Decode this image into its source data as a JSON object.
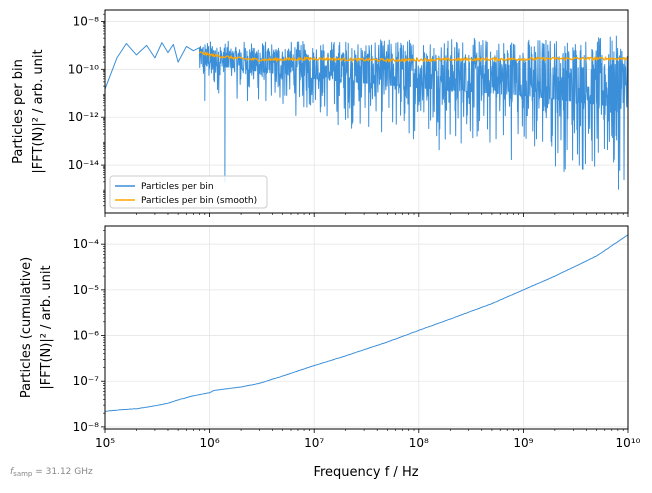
{
  "footnote": "f_samp = 31.12 GHz",
  "footnote_main": "f",
  "footnote_sub": "samp",
  "footnote_rest": " = 31.12 GHz",
  "colors": {
    "blue": "#3b8fd9",
    "orange": "#ffa500"
  },
  "chart_data": [
    {
      "type": "line",
      "panel": "top",
      "ylabel_line1": "Particles per bin",
      "ylabel_line2": "|FFT(N)|² / arb. unit",
      "xscale": "log",
      "yscale": "log",
      "xlim": [
        100000,
        10000000000
      ],
      "ylim": [
        1e-16,
        3e-08
      ],
      "yticks": [
        1e-14,
        1e-12,
        1e-10,
        1e-08
      ],
      "ytick_labels": [
        "10⁻¹⁴",
        "10⁻¹²",
        "10⁻¹⁰",
        "10⁻⁸"
      ],
      "grid": true,
      "legend_position": "lower-left",
      "series": [
        {
          "name": "Particles per bin",
          "color": "#3b8fd9",
          "style": "noisy spectrum",
          "envelope_upper": {
            "x": [
              100000,
              1000000,
              10000000,
              100000000,
              1000000000,
              10000000000
            ],
            "y": [
              1.5e-09,
              1.5e-09,
              1.5e-09,
              2e-09,
              2e-09,
              2.5e-09
            ]
          },
          "envelope_lower": {
            "x": [
              100000,
              1000000,
              10000000,
              100000000,
              1000000000,
              10000000000
            ],
            "y": [
              1e-10,
              1e-11,
              5e-13,
              5e-14,
              1e-14,
              5e-16
            ]
          },
          "low_freq_points": {
            "x": [
              100000,
              130000,
              160000,
              200000,
              250000,
              300000,
              350000,
              400000,
              450000,
              500000,
              600000,
              700000,
              800000
            ],
            "y": [
              1.5e-11,
              3e-10,
              1.2e-09,
              4e-10,
              1e-09,
              3e-10,
              1.3e-09,
              5e-10,
              1.1e-09,
              2e-10,
              9e-10,
              6e-10,
              8e-10
            ]
          },
          "dips": {
            "x": [
              900000,
              1400000
            ],
            "y": [
              5e-12,
              2e-15
            ]
          }
        },
        {
          "name": "Particles per bin (smooth)",
          "color": "#ffa500",
          "x": [
            800000,
            1000000,
            1500000,
            2000000,
            3000000,
            5000000,
            10000000,
            20000000,
            50000000,
            100000000,
            300000000,
            1000000000,
            3000000000,
            10000000000
          ],
          "y": [
            5e-10,
            4e-10,
            3.2e-10,
            2.8e-10,
            2.5e-10,
            2.6e-10,
            2.8e-10,
            2.6e-10,
            2.4e-10,
            2.5e-10,
            2.6e-10,
            2.7e-10,
            2.8e-10,
            2.8e-10
          ]
        }
      ]
    },
    {
      "type": "line",
      "panel": "bottom",
      "ylabel_line1": "Particles (cumulative)",
      "ylabel_line2": "|FFT(N)|² / arb. unit",
      "xlabel": "Frequency   f / Hz",
      "xscale": "log",
      "yscale": "log",
      "xlim": [
        100000,
        10000000000
      ],
      "ylim": [
        9e-09,
        0.00025
      ],
      "xticks": [
        100000,
        1000000,
        10000000,
        100000000,
        1000000000,
        10000000000
      ],
      "xtick_labels": [
        "10⁵",
        "10⁶",
        "10⁷",
        "10⁸",
        "10⁹",
        "10¹⁰"
      ],
      "yticks": [
        1e-08,
        1e-07,
        1e-06,
        1e-05,
        0.0001
      ],
      "ytick_labels": [
        "10⁻⁸",
        "10⁻⁷",
        "10⁻⁶",
        "10⁻⁵",
        "10⁻⁴"
      ],
      "grid": true,
      "series": [
        {
          "name": "",
          "color": "#3b8fd9",
          "x": [
            100000,
            150000,
            200000,
            250000,
            300000,
            400000,
            500000,
            700000,
            1000000,
            1100000,
            1300000,
            1500000,
            2000000,
            3000000,
            5000000,
            10000000,
            20000000,
            50000000,
            100000000,
            200000000,
            500000000,
            1000000000,
            2000000000,
            5000000000,
            10000000000
          ],
          "y": [
            2.2e-08,
            2.4e-08,
            2.5e-08,
            2.7e-08,
            2.9e-08,
            3.3e-08,
            3.9e-08,
            4.8e-08,
            5.6e-08,
            6.3e-08,
            6.6e-08,
            6.9e-08,
            7.5e-08,
            9e-08,
            1.3e-07,
            2.2e-07,
            3.6e-07,
            7.2e-07,
            1.3e-06,
            2.3e-06,
            5e-06,
            1e-05,
            2e-05,
            5.5e-05,
            0.00016
          ]
        }
      ]
    }
  ]
}
